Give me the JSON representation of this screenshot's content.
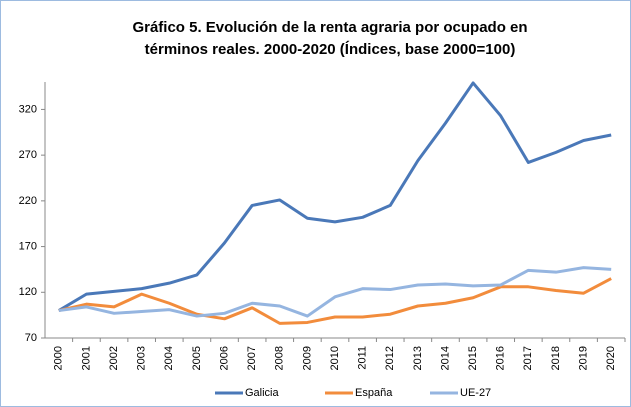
{
  "chart_data": {
    "type": "line",
    "title": [
      "Gráfico 5. Evolución de la renta agraria por ocupado en",
      "términos reales. 2000-2020 (Índices, base 2000=100)"
    ],
    "categories": [
      "2000",
      "2001",
      "2002",
      "2003",
      "2004",
      "2005",
      "2006",
      "2007",
      "2008",
      "2009",
      "2010",
      "2011",
      "2012",
      "2013",
      "2014",
      "2015",
      "2016",
      "2017",
      "2018",
      "2019",
      "2020"
    ],
    "series": [
      {
        "name": "Galicia",
        "color": "#4a78b8",
        "values": [
          100,
          118,
          121,
          124,
          130,
          139,
          174,
          215,
          221,
          201,
          197,
          202,
          215,
          264,
          305,
          349,
          313,
          262,
          273,
          286,
          292
        ]
      },
      {
        "name": "España",
        "color": "#f28c3c",
        "values": [
          100,
          107,
          104,
          118,
          108,
          96,
          91,
          103,
          86,
          87,
          93,
          93,
          96,
          105,
          108,
          114,
          126,
          126,
          122,
          119,
          135
        ]
      },
      {
        "name": "UE-27",
        "color": "#95b5e0",
        "values": [
          100,
          104,
          97,
          99,
          101,
          94,
          97,
          108,
          105,
          94,
          115,
          124,
          123,
          128,
          129,
          127,
          128,
          144,
          142,
          147,
          145
        ]
      }
    ],
    "ylim": [
      70,
      350
    ],
    "yticks": [
      70,
      120,
      170,
      220,
      270,
      320
    ],
    "grid": false,
    "legend": "bottom"
  }
}
